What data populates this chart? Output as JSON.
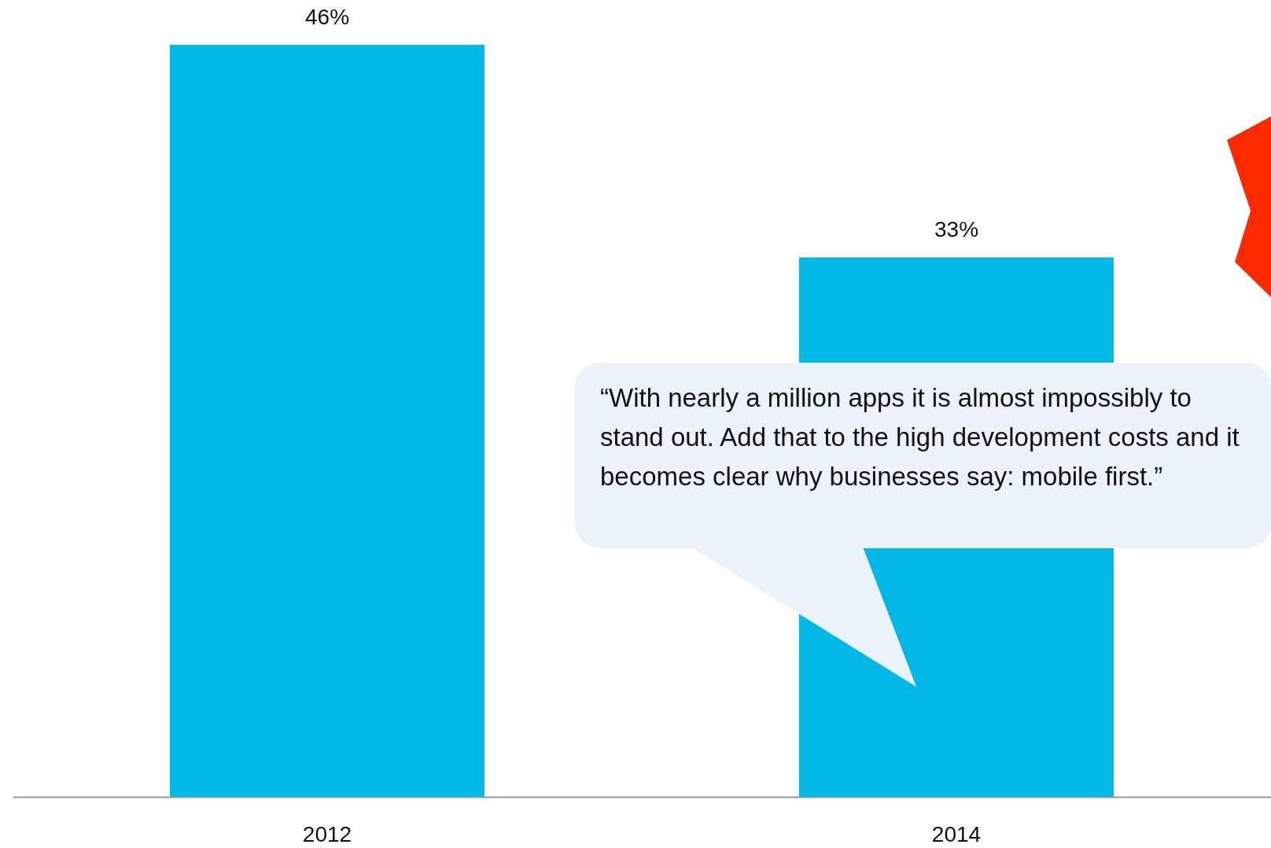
{
  "chart_data": {
    "type": "bar",
    "categories": [
      "2012",
      "2014"
    ],
    "values": [
      46,
      33
    ],
    "value_labels": [
      "46%",
      "33%"
    ],
    "color": "#00b8e6",
    "annotations": [
      "“With nearly a million apps it is almost impossibly to stand out. Add that to the high development costs and it becomes clear why businesses say: mobile first.”"
    ]
  }
}
